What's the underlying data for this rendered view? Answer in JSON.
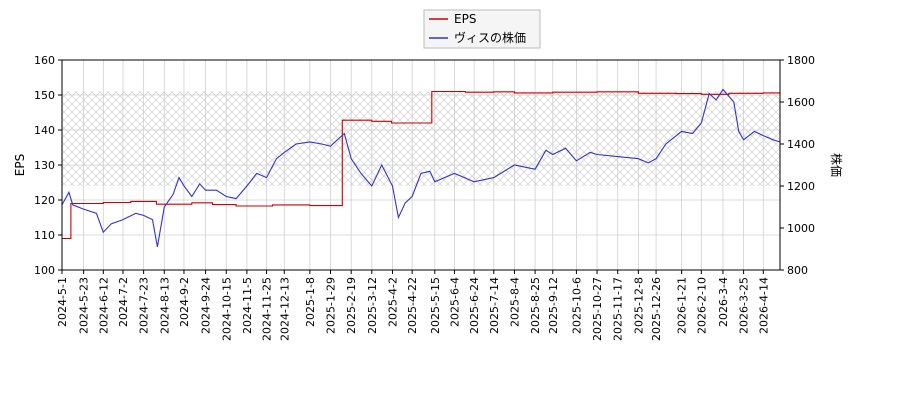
{
  "chart_data": {
    "type": "line",
    "title": "",
    "xlabel": "",
    "ylabel_left": "EPS",
    "ylabel_right": "株価",
    "ylim_left": [
      100,
      160
    ],
    "ylim_right": [
      800,
      1800
    ],
    "yticks_left": [
      "100",
      "110",
      "120",
      "130",
      "140",
      "150",
      "160"
    ],
    "yticks_right": [
      "800",
      "1000",
      "1200",
      "1400",
      "1600",
      "1800"
    ],
    "x_start": "2024-05-01",
    "x_end": "2026-05-01",
    "xticks": [
      "2024-5-1",
      "2024-5-23",
      "2024-6-12",
      "2024-7-2",
      "2024-7-23",
      "2024-8-13",
      "2024-9-2",
      "2024-9-24",
      "2024-10-15",
      "2024-11-5",
      "2024-11-25",
      "2024-12-13",
      "2025-1-8",
      "2025-1-29",
      "2025-2-19",
      "2025-3-12",
      "2025-4-2",
      "2025-4-22",
      "2025-5-15",
      "2025-6-4",
      "2025-6-24",
      "2025-7-14",
      "2025-8-4",
      "2025-8-25",
      "2025-9-12",
      "2025-10-6",
      "2025-10-27",
      "2025-11-17",
      "2025-12-8",
      "2025-12-26",
      "2026-1-21",
      "2026-2-10",
      "2026-3-4",
      "2026-3-25",
      "2026-4-14"
    ],
    "legend_position": "top-center",
    "grid": true,
    "shaded_band_right": [
      1200,
      1650
    ],
    "series": [
      {
        "name": "EPS",
        "axis": "left",
        "color": "#cc0000",
        "step": true,
        "points": [
          [
            "2024-05-01",
            109.0
          ],
          [
            "2024-05-10",
            119.0
          ],
          [
            "2024-06-12",
            119.3
          ],
          [
            "2024-07-10",
            119.6
          ],
          [
            "2024-08-05",
            118.8
          ],
          [
            "2024-09-10",
            119.2
          ],
          [
            "2024-10-01",
            118.7
          ],
          [
            "2024-10-25",
            118.3
          ],
          [
            "2024-12-01",
            118.6
          ],
          [
            "2025-01-08",
            118.4
          ],
          [
            "2025-02-10",
            142.8
          ],
          [
            "2025-03-12",
            142.5
          ],
          [
            "2025-04-01",
            142.0
          ],
          [
            "2025-05-12",
            151.0
          ],
          [
            "2025-06-15",
            150.8
          ],
          [
            "2025-07-14",
            150.9
          ],
          [
            "2025-08-04",
            150.6
          ],
          [
            "2025-09-12",
            150.8
          ],
          [
            "2025-10-27",
            150.9
          ],
          [
            "2025-12-08",
            150.5
          ],
          [
            "2026-01-15",
            150.4
          ],
          [
            "2026-02-10",
            150.2
          ],
          [
            "2026-03-10",
            150.5
          ],
          [
            "2026-04-14",
            150.6
          ],
          [
            "2026-05-01",
            150.6
          ]
        ]
      },
      {
        "name": "ヴィスの株価",
        "axis": "right",
        "color": "#3333cc",
        "step": false,
        "points": [
          [
            "2024-05-01",
            1110
          ],
          [
            "2024-05-08",
            1170
          ],
          [
            "2024-05-12",
            1110
          ],
          [
            "2024-05-23",
            1090
          ],
          [
            "2024-06-05",
            1070
          ],
          [
            "2024-06-12",
            980
          ],
          [
            "2024-06-20",
            1020
          ],
          [
            "2024-07-02",
            1040
          ],
          [
            "2024-07-15",
            1070
          ],
          [
            "2024-07-23",
            1060
          ],
          [
            "2024-08-01",
            1040
          ],
          [
            "2024-08-06",
            910
          ],
          [
            "2024-08-13",
            1100
          ],
          [
            "2024-08-22",
            1160
          ],
          [
            "2024-08-28",
            1240
          ],
          [
            "2024-09-02",
            1200
          ],
          [
            "2024-09-10",
            1150
          ],
          [
            "2024-09-18",
            1210
          ],
          [
            "2024-09-24",
            1180
          ],
          [
            "2024-10-05",
            1180
          ],
          [
            "2024-10-15",
            1150
          ],
          [
            "2024-10-25",
            1140
          ],
          [
            "2024-11-05",
            1200
          ],
          [
            "2024-11-15",
            1260
          ],
          [
            "2024-11-25",
            1240
          ],
          [
            "2024-12-05",
            1330
          ],
          [
            "2024-12-13",
            1360
          ],
          [
            "2024-12-25",
            1400
          ],
          [
            "2025-01-08",
            1410
          ],
          [
            "2025-01-20",
            1400
          ],
          [
            "2025-01-29",
            1390
          ],
          [
            "2025-02-05",
            1420
          ],
          [
            "2025-02-12",
            1450
          ],
          [
            "2025-02-19",
            1330
          ],
          [
            "2025-03-01",
            1260
          ],
          [
            "2025-03-12",
            1200
          ],
          [
            "2025-03-22",
            1300
          ],
          [
            "2025-04-02",
            1200
          ],
          [
            "2025-04-08",
            1050
          ],
          [
            "2025-04-15",
            1120
          ],
          [
            "2025-04-22",
            1150
          ],
          [
            "2025-05-01",
            1260
          ],
          [
            "2025-05-10",
            1270
          ],
          [
            "2025-05-15",
            1220
          ],
          [
            "2025-06-04",
            1260
          ],
          [
            "2025-06-24",
            1220
          ],
          [
            "2025-07-14",
            1240
          ],
          [
            "2025-08-04",
            1300
          ],
          [
            "2025-08-25",
            1280
          ],
          [
            "2025-09-05",
            1370
          ],
          [
            "2025-09-12",
            1350
          ],
          [
            "2025-09-25",
            1380
          ],
          [
            "2025-10-06",
            1320
          ],
          [
            "2025-10-20",
            1360
          ],
          [
            "2025-10-27",
            1350
          ],
          [
            "2025-11-17",
            1340
          ],
          [
            "2025-12-08",
            1330
          ],
          [
            "2025-12-18",
            1310
          ],
          [
            "2025-12-26",
            1330
          ],
          [
            "2026-01-05",
            1400
          ],
          [
            "2026-01-21",
            1460
          ],
          [
            "2026-02-01",
            1450
          ],
          [
            "2026-02-10",
            1500
          ],
          [
            "2026-02-18",
            1640
          ],
          [
            "2026-02-25",
            1610
          ],
          [
            "2026-03-04",
            1660
          ],
          [
            "2026-03-15",
            1600
          ],
          [
            "2026-03-20",
            1460
          ],
          [
            "2026-03-25",
            1420
          ],
          [
            "2026-04-05",
            1460
          ],
          [
            "2026-04-14",
            1440
          ],
          [
            "2026-04-24",
            1420
          ],
          [
            "2026-05-01",
            1410
          ]
        ]
      }
    ]
  }
}
